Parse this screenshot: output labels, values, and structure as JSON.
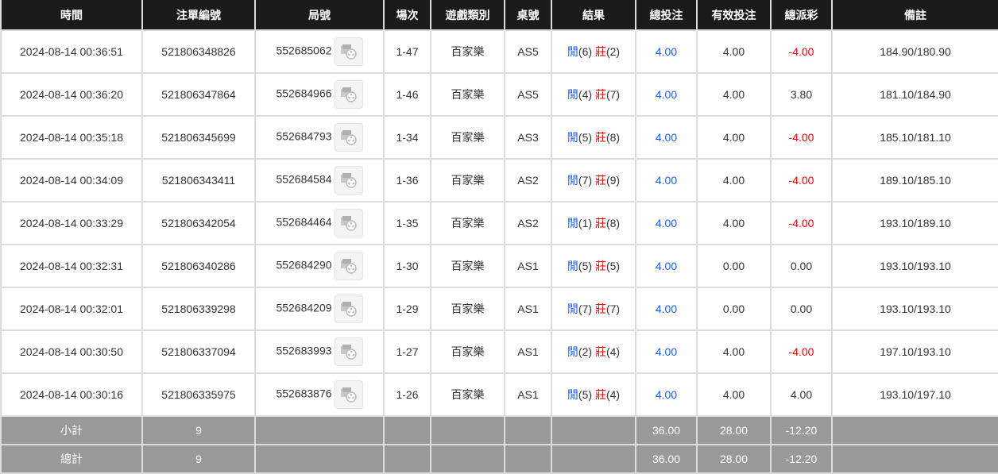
{
  "headers": [
    "時間",
    "注單編號",
    "局號",
    "場次",
    "遊戲類別",
    "桌號",
    "結果",
    "總投注",
    "有效投注",
    "總派彩",
    "備註"
  ],
  "rows": [
    {
      "time": "2024-08-14 00:36:51",
      "bet_id": "521806348826",
      "round": "552685062",
      "shoe": "1-47",
      "game": "百家樂",
      "table": "AS5",
      "player_label": "閒",
      "player": "(6)",
      "banker_label": "莊",
      "banker": "(2)",
      "total_bet": "4.00",
      "valid_bet": "4.00",
      "payout": "-4.00",
      "payout_neg": true,
      "note": "184.90/180.90"
    },
    {
      "time": "2024-08-14 00:36:20",
      "bet_id": "521806347864",
      "round": "552684966",
      "shoe": "1-46",
      "game": "百家樂",
      "table": "AS5",
      "player_label": "閒",
      "player": "(4)",
      "banker_label": "莊",
      "banker": "(7)",
      "total_bet": "4.00",
      "valid_bet": "4.00",
      "payout": "3.80",
      "payout_neg": false,
      "note": "181.10/184.90"
    },
    {
      "time": "2024-08-14 00:35:18",
      "bet_id": "521806345699",
      "round": "552684793",
      "shoe": "1-34",
      "game": "百家樂",
      "table": "AS3",
      "player_label": "閒",
      "player": "(5)",
      "banker_label": "莊",
      "banker": "(8)",
      "total_bet": "4.00",
      "valid_bet": "4.00",
      "payout": "-4.00",
      "payout_neg": true,
      "note": "185.10/181.10"
    },
    {
      "time": "2024-08-14 00:34:09",
      "bet_id": "521806343411",
      "round": "552684584",
      "shoe": "1-36",
      "game": "百家樂",
      "table": "AS2",
      "player_label": "閒",
      "player": "(7)",
      "banker_label": "莊",
      "banker": "(9)",
      "total_bet": "4.00",
      "valid_bet": "4.00",
      "payout": "-4.00",
      "payout_neg": true,
      "note": "189.10/185.10"
    },
    {
      "time": "2024-08-14 00:33:29",
      "bet_id": "521806342054",
      "round": "552684464",
      "shoe": "1-35",
      "game": "百家樂",
      "table": "AS2",
      "player_label": "閒",
      "player": "(1)",
      "banker_label": "莊",
      "banker": "(8)",
      "total_bet": "4.00",
      "valid_bet": "4.00",
      "payout": "-4.00",
      "payout_neg": true,
      "note": "193.10/189.10"
    },
    {
      "time": "2024-08-14 00:32:31",
      "bet_id": "521806340286",
      "round": "552684290",
      "shoe": "1-30",
      "game": "百家樂",
      "table": "AS1",
      "player_label": "閒",
      "player": "(5)",
      "banker_label": "莊",
      "banker": "(5)",
      "total_bet": "4.00",
      "valid_bet": "0.00",
      "payout": "0.00",
      "payout_neg": false,
      "note": "193.10/193.10"
    },
    {
      "time": "2024-08-14 00:32:01",
      "bet_id": "521806339298",
      "round": "552684209",
      "shoe": "1-29",
      "game": "百家樂",
      "table": "AS1",
      "player_label": "閒",
      "player": "(7)",
      "banker_label": "莊",
      "banker": "(7)",
      "total_bet": "4.00",
      "valid_bet": "0.00",
      "payout": "0.00",
      "payout_neg": false,
      "note": "193.10/193.10"
    },
    {
      "time": "2024-08-14 00:30:50",
      "bet_id": "521806337094",
      "round": "552683993",
      "shoe": "1-27",
      "game": "百家樂",
      "table": "AS1",
      "player_label": "閒",
      "player": "(2)",
      "banker_label": "莊",
      "banker": "(4)",
      "total_bet": "4.00",
      "valid_bet": "4.00",
      "payout": "-4.00",
      "payout_neg": true,
      "note": "197.10/193.10"
    },
    {
      "time": "2024-08-14 00:30:16",
      "bet_id": "521806335975",
      "round": "552683876",
      "shoe": "1-26",
      "game": "百家樂",
      "table": "AS1",
      "player_label": "閒",
      "player": "(5)",
      "banker_label": "莊",
      "banker": "(4)",
      "total_bet": "4.00",
      "valid_bet": "4.00",
      "payout": "4.00",
      "payout_neg": false,
      "note": "193.10/197.10"
    }
  ],
  "subtotal": {
    "label": "小計",
    "count": "9",
    "total_bet": "36.00",
    "valid_bet": "28.00",
    "payout": "-12.20"
  },
  "grandtotal": {
    "label": "總計",
    "count": "9",
    "total_bet": "36.00",
    "valid_bet": "28.00",
    "payout": "-12.20"
  },
  "colors": {
    "header_bg": "#1b1b1b",
    "blue": "#1a5cff",
    "red": "#ff0000",
    "summary_bg": "#999999"
  }
}
